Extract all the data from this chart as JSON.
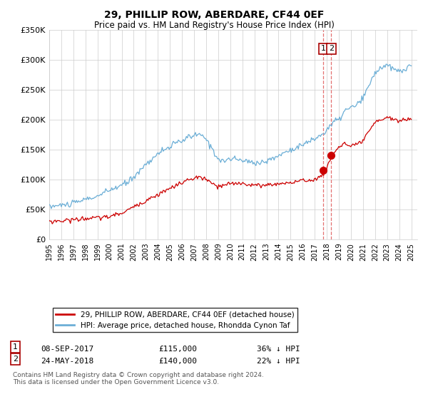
{
  "title": "29, PHILLIP ROW, ABERDARE, CF44 0EF",
  "subtitle": "Price paid vs. HM Land Registry's House Price Index (HPI)",
  "ylim": [
    0,
    350000
  ],
  "yticks": [
    0,
    50000,
    100000,
    150000,
    200000,
    250000,
    300000,
    350000
  ],
  "ytick_labels": [
    "£0",
    "£50K",
    "£100K",
    "£150K",
    "£200K",
    "£250K",
    "£300K",
    "£350K"
  ],
  "hpi_color": "#6baed6",
  "price_color": "#cc0000",
  "vline_color": "#e06060",
  "transaction1": {
    "date": "08-SEP-2017",
    "price": 115000,
    "label": "1",
    "pct": "36%"
  },
  "transaction2": {
    "date": "24-MAY-2018",
    "price": 140000,
    "label": "2",
    "pct": "22%"
  },
  "legend_label1": "29, PHILLIP ROW, ABERDARE, CF44 0EF (detached house)",
  "legend_label2": "HPI: Average price, detached house, Rhondda Cynon Taf",
  "footer1": "Contains HM Land Registry data © Crown copyright and database right 2024.",
  "footer2": "This data is licensed under the Open Government Licence v3.0.",
  "background_color": "#ffffff",
  "grid_color": "#cccccc"
}
